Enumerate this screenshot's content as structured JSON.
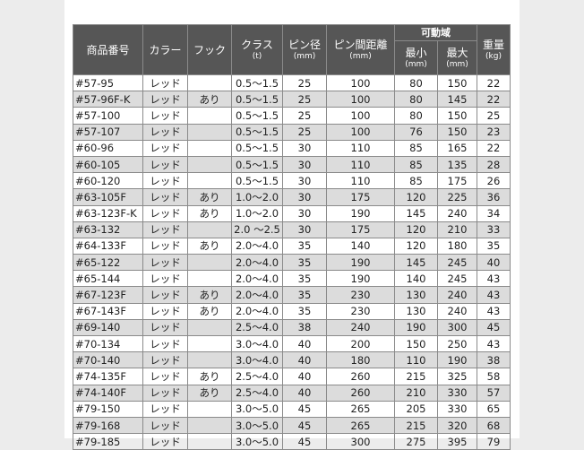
{
  "header": {
    "product_no": "商品番号",
    "color": "カラー",
    "hook": "フック",
    "class": "クラス",
    "class_unit": "(t)",
    "pin_dia": "ピン径",
    "pin_dia_unit": "(mm)",
    "pin_dist": "ピン間距離",
    "pin_dist_unit": "(mm)",
    "range": "可動域",
    "min": "最小",
    "min_unit": "(mm)",
    "max": "最大",
    "max_unit": "(mm)",
    "weight": "重量",
    "weight_unit": "(kg)"
  },
  "rows": [
    [
      "#57-95",
      "レッド",
      "",
      "0.5〜1.5",
      "25",
      "100",
      "80",
      "150",
      "22"
    ],
    [
      "#57-96F-K",
      "レッド",
      "あり",
      "0.5〜1.5",
      "25",
      "100",
      "80",
      "145",
      "22"
    ],
    [
      "#57-100",
      "レッド",
      "",
      "0.5〜1.5",
      "25",
      "100",
      "80",
      "150",
      "25"
    ],
    [
      "#57-107",
      "レッド",
      "",
      "0.5〜1.5",
      "25",
      "100",
      "76",
      "150",
      "23"
    ],
    [
      "#60-96",
      "レッド",
      "",
      "0.5〜1.5",
      "30",
      "110",
      "85",
      "165",
      "22"
    ],
    [
      "#60-105",
      "レッド",
      "",
      "0.5〜1.5",
      "30",
      "110",
      "85",
      "135",
      "28"
    ],
    [
      "#60-120",
      "レッド",
      "",
      "0.5〜1.5",
      "30",
      "110",
      "85",
      "175",
      "26"
    ],
    [
      "#63-105F",
      "レッド",
      "あり",
      "1.0〜2.0",
      "30",
      "175",
      "120",
      "225",
      "36"
    ],
    [
      "#63-123F-K",
      "レッド",
      "あり",
      "1.0〜2.0",
      "30",
      "190",
      "145",
      "240",
      "34"
    ],
    [
      "#63-132",
      "レッド",
      "",
      "2.0 〜2.5",
      "30",
      "175",
      "120",
      "210",
      "33"
    ],
    [
      "#64-133F",
      "レッド",
      "あり",
      "2.0〜4.0",
      "35",
      "140",
      "120",
      "180",
      "35"
    ],
    [
      "#65-122",
      "レッド",
      "",
      "2.0〜4.0",
      "35",
      "190",
      "145",
      "245",
      "40"
    ],
    [
      "#65-144",
      "レッド",
      "",
      "2.0〜4.0",
      "35",
      "190",
      "140",
      "245",
      "43"
    ],
    [
      "#67-123F",
      "レッド",
      "あり",
      "2.0〜4.0",
      "35",
      "230",
      "130",
      "240",
      "43"
    ],
    [
      "#67-143F",
      "レッド",
      "あり",
      "2.0〜4.0",
      "35",
      "230",
      "130",
      "240",
      "43"
    ],
    [
      "#69-140",
      "レッド",
      "",
      "2.5〜4.0",
      "38",
      "240",
      "190",
      "300",
      "45"
    ],
    [
      "#70-134",
      "レッド",
      "",
      "3.0〜4.0",
      "40",
      "200",
      "150",
      "250",
      "43"
    ],
    [
      "#70-140",
      "レッド",
      "",
      "3.0〜4.0",
      "40",
      "180",
      "110",
      "190",
      "38"
    ],
    [
      "#74-135F",
      "レッド",
      "あり",
      "2.5〜4.0",
      "40",
      "260",
      "215",
      "325",
      "58"
    ],
    [
      "#74-140F",
      "レッド",
      "あり",
      "2.5〜4.0",
      "40",
      "260",
      "210",
      "330",
      "57"
    ],
    [
      "#79-150",
      "レッド",
      "",
      "3.0〜5.0",
      "45",
      "265",
      "205",
      "330",
      "65"
    ],
    [
      "#79-168",
      "レッド",
      "",
      "3.0〜5.0",
      "45",
      "265",
      "215",
      "320",
      "68"
    ],
    [
      "#79-185",
      "レッド",
      "",
      "3.0〜5.0",
      "45",
      "300",
      "275",
      "395",
      "79"
    ]
  ]
}
